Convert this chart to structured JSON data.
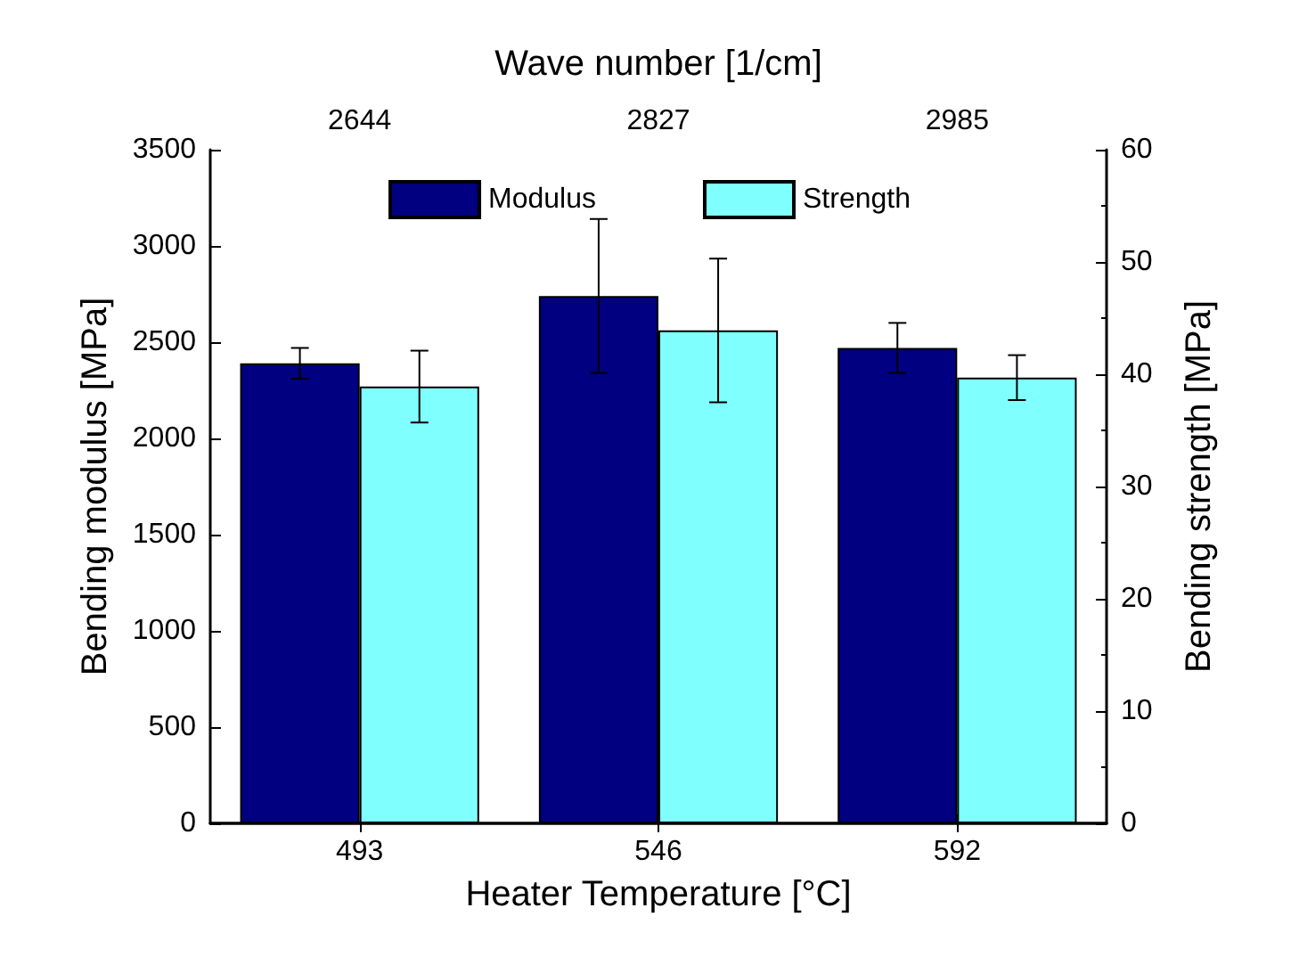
{
  "chart_data": {
    "type": "bar",
    "xlabel": "Heater Temperature [°C]",
    "ylabel": "Bending modulus [MPa]",
    "y2label": "Bending strength [MPa]",
    "x2label": "Wave number [1/cm]",
    "categories": [
      "493",
      "546",
      "592"
    ],
    "annotations": [
      "2644",
      "2827",
      "2985"
    ],
    "series": [
      {
        "name": "Modulus",
        "color": "#000080",
        "values": [
          2390,
          2740,
          2470
        ],
        "errors": [
          80,
          400,
          130
        ]
      },
      {
        "name": "Strength",
        "color": "#80ffff",
        "values": [
          38.9,
          43.9,
          39.7
        ],
        "errors": [
          3.2,
          6.4,
          2
        ],
        "axis": "y2"
      }
    ],
    "ylim": [
      0,
      3500
    ],
    "yticks": [
      0,
      500,
      1000,
      1500,
      2000,
      2500,
      3000,
      3500
    ],
    "y2lim": [
      0,
      60
    ],
    "y2ticks": [
      0,
      10,
      20,
      30,
      40,
      50,
      60
    ],
    "grid": false,
    "legend": "top"
  }
}
